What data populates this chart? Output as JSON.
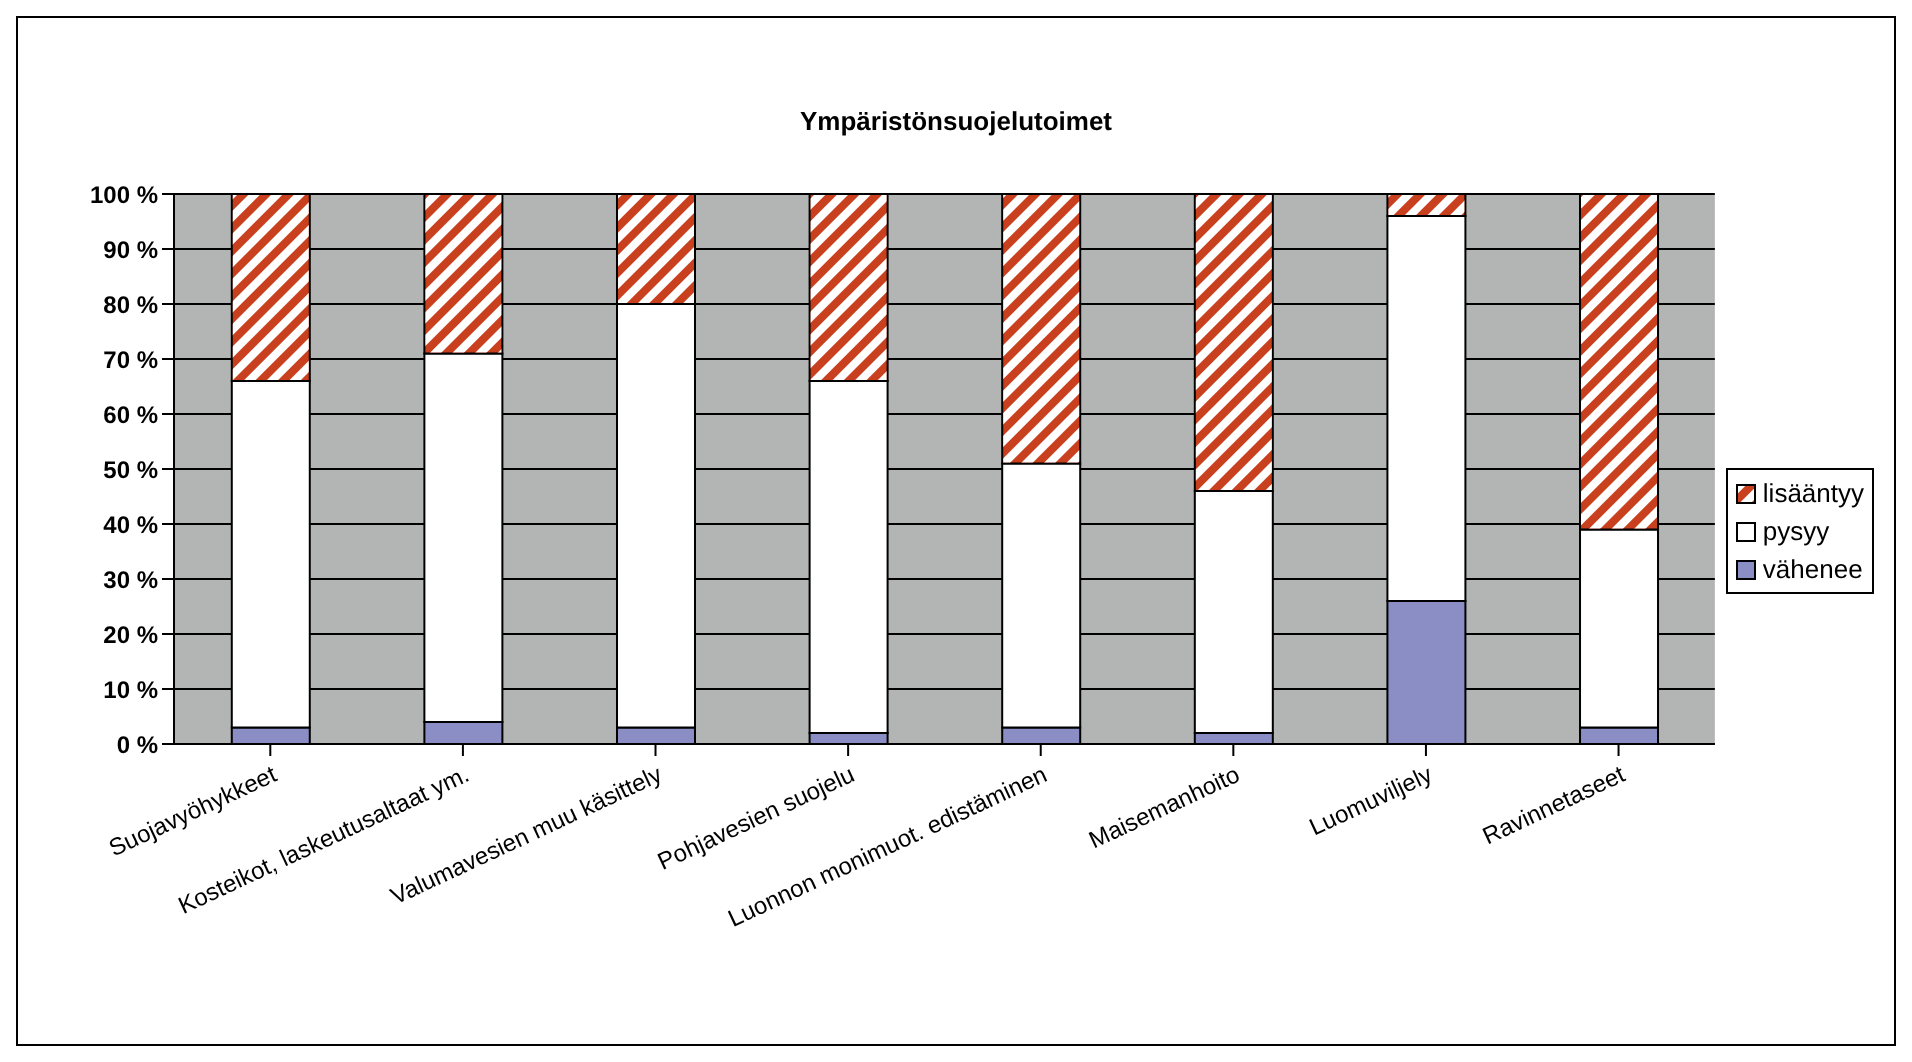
{
  "chart_data": {
    "type": "bar",
    "title": "Ympäristönsuojelutoimet",
    "stacked": true,
    "categories": [
      "Suojavyöhykkeet",
      "Kosteikot, laskeutusaltaat ym.",
      "Valumavesien muu käsittely",
      "Pohjavesien suojelu",
      "Luonnon monimuot. edistäminen",
      "Maisemanhoito",
      "Luomuviljely",
      "Ravinnetaseet"
    ],
    "series": [
      {
        "name": "vähenee",
        "color": "#8b8ec4",
        "values": [
          3,
          4,
          3,
          2,
          3,
          2,
          26,
          3
        ]
      },
      {
        "name": "pysyy",
        "color": "#ffffff",
        "values": [
          63,
          67,
          77,
          64,
          48,
          44,
          70,
          36
        ]
      },
      {
        "name": "lisääntyy",
        "color": "#c8401e",
        "values": [
          34,
          29,
          20,
          34,
          49,
          54,
          4,
          61
        ]
      }
    ],
    "ylim": [
      0,
      100
    ],
    "yticks": [
      {
        "value": 0,
        "label": "0 %"
      },
      {
        "value": 10,
        "label": "10 %"
      },
      {
        "value": 20,
        "label": "20 %"
      },
      {
        "value": 30,
        "label": "30 %"
      },
      {
        "value": 40,
        "label": "40 %"
      },
      {
        "value": 50,
        "label": "50 %"
      },
      {
        "value": 60,
        "label": "60 %"
      },
      {
        "value": 70,
        "label": "70 %"
      },
      {
        "value": 80,
        "label": "80 %"
      },
      {
        "value": 90,
        "label": "90 %"
      },
      {
        "value": 100,
        "label": "100 %"
      }
    ],
    "grid": "y",
    "legend": "right"
  }
}
